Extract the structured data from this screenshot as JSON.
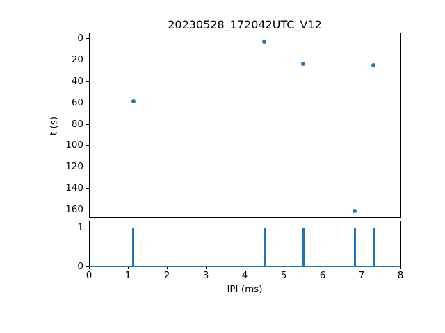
{
  "figure": {
    "background_color": "#ffffff",
    "text_color": "#000000",
    "accent_color": "#1f77b4"
  },
  "chart_data": [
    {
      "type": "scatter",
      "title": "20230528_172042UTC_V12",
      "xlabel": "",
      "ylabel": "t (s)",
      "xlim": [
        0,
        8
      ],
      "ylim": [
        -5.5,
        167
      ],
      "y_inverted": true,
      "grid": false,
      "legend": null,
      "x_ticks": [
        0,
        1,
        2,
        3,
        4,
        5,
        6,
        7,
        8
      ],
      "x_tick_labels_visible": false,
      "y_ticks": [
        0,
        20,
        40,
        60,
        80,
        100,
        120,
        140,
        160
      ],
      "marker_color": "#1f77b4",
      "points": [
        {
          "x": 1.14,
          "y": 58.8
        },
        {
          "x": 4.5,
          "y": 2.5
        },
        {
          "x": 5.5,
          "y": 23.3
        },
        {
          "x": 6.83,
          "y": 161.3
        },
        {
          "x": 7.31,
          "y": 24.4
        }
      ]
    },
    {
      "type": "bar",
      "title": "",
      "xlabel": "IPI (ms)",
      "ylabel": "",
      "xlim": [
        0,
        8
      ],
      "ylim": [
        0,
        1.185
      ],
      "grid": false,
      "legend": null,
      "x_ticks": [
        0,
        1,
        2,
        3,
        4,
        5,
        6,
        7,
        8
      ],
      "y_ticks": [
        0,
        1
      ],
      "bar_color": "#1f77b4",
      "baseline": true,
      "bars": [
        {
          "x": 1.14,
          "height": 1
        },
        {
          "x": 4.5,
          "height": 1
        },
        {
          "x": 5.5,
          "height": 1
        },
        {
          "x": 6.83,
          "height": 1
        },
        {
          "x": 7.31,
          "height": 1
        }
      ]
    }
  ]
}
